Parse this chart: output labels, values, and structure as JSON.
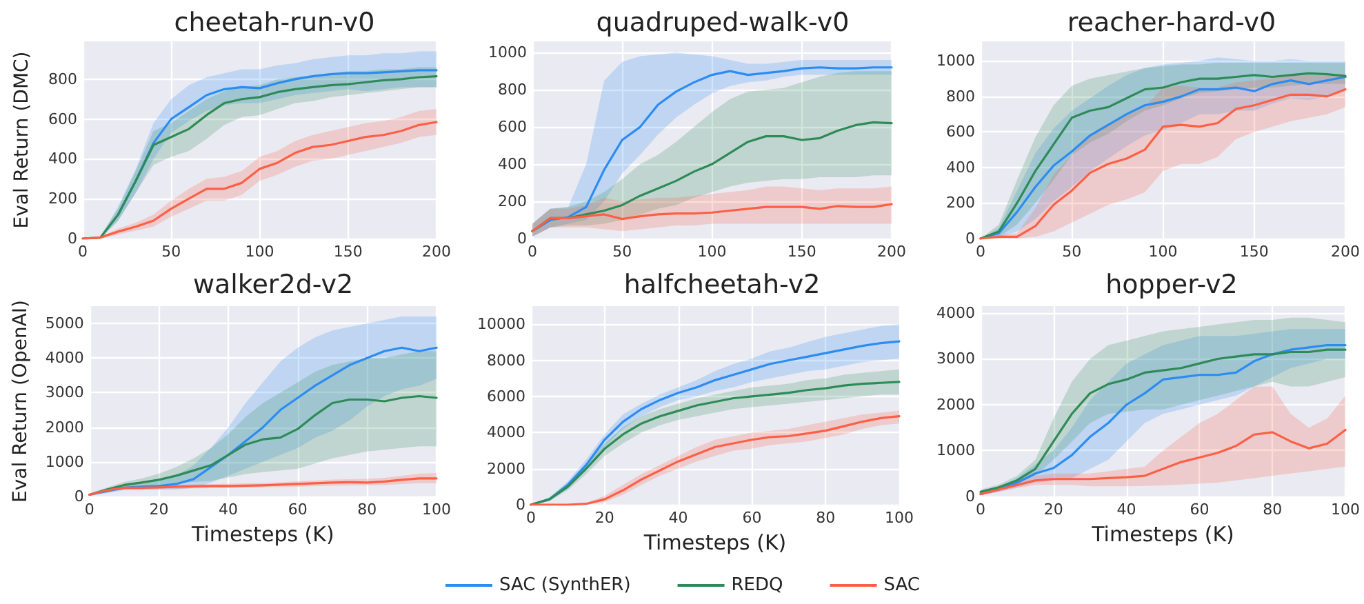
{
  "chart_data": [
    {
      "type": "line",
      "title": "cheetah-run-v0",
      "ylabel": "Eval Return (DMC)",
      "x": [
        0,
        10,
        20,
        30,
        40,
        50,
        60,
        70,
        80,
        90,
        100,
        110,
        120,
        130,
        140,
        150,
        160,
        170,
        180,
        190,
        200
      ],
      "xlim": [
        0,
        200
      ],
      "xticks": [
        0,
        50,
        100,
        150,
        200
      ],
      "ylim": [
        0,
        990
      ],
      "yticks": [
        0,
        200,
        400,
        600,
        800
      ],
      "grid": true,
      "marker": "none",
      "series": [
        {
          "color": "#2b8cf2",
          "values": [
            null,
            null,
            120,
            290,
            480,
            600,
            660,
            720,
            750,
            760,
            755,
            780,
            800,
            815,
            825,
            830,
            830,
            835,
            840,
            845,
            845
          ],
          "lower": [
            0,
            0,
            90,
            230,
            400,
            530,
            590,
            640,
            670,
            680,
            680,
            700,
            720,
            730,
            740,
            750,
            740,
            750,
            760,
            760,
            760
          ],
          "upper": [
            0,
            10,
            160,
            350,
            580,
            700,
            770,
            810,
            830,
            850,
            850,
            870,
            880,
            900,
            910,
            920,
            920,
            930,
            930,
            940,
            940
          ]
        },
        {
          "color": "#2e8b57",
          "values": [
            0,
            5,
            120,
            290,
            470,
            510,
            550,
            620,
            680,
            700,
            710,
            735,
            750,
            760,
            770,
            775,
            785,
            795,
            800,
            810,
            815
          ],
          "lower": [
            0,
            0,
            90,
            230,
            370,
            410,
            440,
            500,
            570,
            610,
            620,
            650,
            680,
            690,
            710,
            720,
            730,
            740,
            750,
            760,
            760
          ],
          "upper": [
            0,
            10,
            150,
            340,
            540,
            580,
            640,
            700,
            740,
            760,
            770,
            800,
            810,
            820,
            830,
            840,
            840,
            850,
            850,
            860,
            860
          ]
        },
        {
          "color": "#fc5f45",
          "values": [
            0,
            5,
            35,
            60,
            90,
            150,
            200,
            250,
            250,
            280,
            350,
            380,
            430,
            460,
            470,
            490,
            510,
            520,
            540,
            570,
            585
          ],
          "lower": [
            0,
            0,
            20,
            40,
            60,
            110,
            150,
            190,
            190,
            220,
            290,
            320,
            360,
            390,
            400,
            420,
            440,
            460,
            480,
            510,
            520
          ],
          "upper": [
            0,
            10,
            50,
            80,
            120,
            190,
            250,
            300,
            310,
            340,
            410,
            440,
            490,
            520,
            540,
            560,
            580,
            590,
            610,
            640,
            650
          ]
        }
      ]
    },
    {
      "type": "line",
      "title": "quadruped-walk-v0",
      "x": [
        0,
        10,
        20,
        30,
        40,
        50,
        60,
        70,
        80,
        90,
        100,
        110,
        120,
        130,
        140,
        150,
        160,
        170,
        180,
        190,
        200
      ],
      "xlim": [
        0,
        200
      ],
      "xticks": [
        0,
        50,
        100,
        150,
        200
      ],
      "ylim": [
        0,
        1060
      ],
      "yticks": [
        0,
        200,
        400,
        600,
        800,
        1000
      ],
      "grid": true,
      "marker": "none",
      "series": [
        {
          "color": "#2b8cf2",
          "values": [
            40,
            100,
            115,
            170,
            370,
            530,
            600,
            720,
            790,
            840,
            880,
            900,
            880,
            890,
            900,
            915,
            920,
            915,
            915,
            920,
            920
          ],
          "lower": [
            10,
            60,
            80,
            100,
            200,
            350,
            450,
            560,
            650,
            720,
            780,
            820,
            840,
            850,
            870,
            880,
            880,
            880,
            880,
            880,
            880
          ],
          "upper": [
            80,
            160,
            170,
            400,
            850,
            950,
            980,
            990,
            1000,
            990,
            980,
            960,
            940,
            940,
            950,
            960,
            960,
            960,
            960,
            960,
            960
          ]
        },
        {
          "color": "#2e8b57",
          "values": [
            40,
            110,
            110,
            130,
            150,
            180,
            230,
            270,
            310,
            360,
            400,
            460,
            520,
            550,
            550,
            530,
            540,
            580,
            610,
            625,
            620
          ],
          "lower": [
            10,
            60,
            70,
            70,
            80,
            100,
            130,
            160,
            180,
            220,
            250,
            280,
            300,
            310,
            320,
            320,
            330,
            330,
            330,
            340,
            340
          ],
          "upper": [
            80,
            160,
            170,
            200,
            250,
            320,
            400,
            450,
            520,
            600,
            680,
            750,
            790,
            800,
            810,
            840,
            870,
            890,
            900,
            900,
            900
          ]
        },
        {
          "color": "#fc5f45",
          "values": [
            40,
            110,
            110,
            120,
            130,
            105,
            120,
            130,
            135,
            135,
            140,
            150,
            160,
            170,
            170,
            170,
            160,
            175,
            170,
            170,
            185
          ],
          "lower": [
            10,
            60,
            60,
            60,
            50,
            40,
            50,
            60,
            70,
            70,
            80,
            80,
            80,
            80,
            80,
            80,
            80,
            80,
            80,
            80,
            80
          ],
          "upper": [
            80,
            160,
            160,
            180,
            220,
            200,
            210,
            220,
            220,
            230,
            240,
            250,
            260,
            280,
            280,
            270,
            260,
            270,
            270,
            270,
            280
          ]
        }
      ]
    },
    {
      "type": "line",
      "title": "reacher-hard-v0",
      "x": [
        0,
        10,
        20,
        30,
        40,
        50,
        60,
        70,
        80,
        90,
        100,
        110,
        120,
        130,
        140,
        150,
        160,
        170,
        180,
        190,
        200
      ],
      "xlim": [
        0,
        200
      ],
      "xticks": [
        0,
        50,
        100,
        150,
        200
      ],
      "ylim": [
        0,
        1110
      ],
      "yticks": [
        0,
        200,
        400,
        600,
        800,
        1000
      ],
      "grid": true,
      "marker": "none",
      "series": [
        {
          "color": "#2b8cf2",
          "values": [
            0,
            30,
            150,
            290,
            410,
            490,
            580,
            640,
            700,
            750,
            770,
            800,
            840,
            840,
            850,
            830,
            870,
            890,
            870,
            890,
            910
          ],
          "lower": [
            0,
            5,
            40,
            110,
            210,
            290,
            380,
            450,
            520,
            580,
            610,
            650,
            700,
            700,
            720,
            720,
            760,
            790,
            780,
            800,
            830
          ],
          "upper": [
            0,
            60,
            270,
            480,
            620,
            720,
            790,
            860,
            920,
            960,
            980,
            990,
            1000,
            1020,
            1010,
            1000,
            1000,
            1010,
            1000,
            1000,
            1000
          ]
        },
        {
          "color": "#2e8b57",
          "values": [
            0,
            40,
            200,
            380,
            530,
            680,
            720,
            740,
            790,
            840,
            850,
            880,
            900,
            900,
            910,
            920,
            910,
            920,
            930,
            925,
            915
          ],
          "lower": [
            0,
            10,
            80,
            200,
            330,
            470,
            540,
            590,
            660,
            720,
            750,
            790,
            820,
            830,
            840,
            850,
            850,
            860,
            870,
            870,
            870
          ],
          "upper": [
            0,
            80,
            330,
            570,
            750,
            860,
            900,
            920,
            940,
            960,
            970,
            980,
            980,
            990,
            990,
            990,
            990,
            990,
            990,
            990,
            990
          ]
        },
        {
          "color": "#fc5f45",
          "values": [
            0,
            10,
            10,
            70,
            190,
            270,
            370,
            420,
            450,
            500,
            630,
            640,
            630,
            650,
            730,
            750,
            780,
            810,
            810,
            800,
            840
          ],
          "lower": [
            0,
            0,
            0,
            10,
            40,
            90,
            140,
            190,
            220,
            260,
            380,
            420,
            420,
            460,
            560,
            600,
            630,
            660,
            680,
            700,
            740
          ],
          "upper": [
            0,
            20,
            30,
            170,
            360,
            470,
            590,
            650,
            700,
            740,
            850,
            860,
            850,
            850,
            880,
            890,
            900,
            920,
            920,
            920,
            930
          ]
        }
      ]
    },
    {
      "type": "line",
      "title": "walker2d-v2",
      "xlabel": "Timesteps (K)",
      "ylabel": "Eval Return (OpenAI)",
      "x": [
        0,
        5,
        10,
        15,
        20,
        25,
        30,
        35,
        40,
        45,
        50,
        55,
        60,
        65,
        70,
        75,
        80,
        85,
        90,
        95,
        100
      ],
      "xlim": [
        0,
        100
      ],
      "xticks": [
        0,
        20,
        40,
        60,
        80,
        100
      ],
      "ylim": [
        0,
        5500
      ],
      "yticks": [
        0,
        1000,
        2000,
        3000,
        4000,
        5000
      ],
      "grid": true,
      "marker": "none",
      "series": [
        {
          "color": "#2b8cf2",
          "values": [
            50,
            150,
            250,
            280,
            300,
            360,
            500,
            850,
            1200,
            1600,
            2000,
            2500,
            2850,
            3200,
            3500,
            3800,
            4000,
            4200,
            4300,
            4200,
            4300
          ],
          "lower": [
            30,
            100,
            180,
            200,
            200,
            200,
            250,
            400,
            600,
            800,
            1000,
            1200,
            1400,
            1700,
            1900,
            2200,
            2600,
            2900,
            3100,
            3200,
            3400
          ],
          "upper": [
            80,
            200,
            320,
            380,
            450,
            600,
            900,
            1400,
            2000,
            2700,
            3300,
            3900,
            4300,
            4600,
            4800,
            4900,
            5000,
            5100,
            5200,
            5200,
            5200
          ]
        },
        {
          "color": "#2e8b57",
          "values": [
            50,
            200,
            330,
            400,
            480,
            600,
            750,
            900,
            1200,
            1500,
            1650,
            1700,
            1950,
            2350,
            2700,
            2800,
            2800,
            2750,
            2850,
            2900,
            2850
          ],
          "lower": [
            30,
            150,
            250,
            280,
            320,
            380,
            420,
            450,
            550,
            650,
            700,
            750,
            800,
            950,
            1100,
            1200,
            1300,
            1350,
            1400,
            1450,
            1450
          ],
          "upper": [
            80,
            260,
            420,
            520,
            660,
            850,
            1100,
            1400,
            1800,
            2300,
            2700,
            3000,
            3300,
            3600,
            3800,
            3900,
            4000,
            4000,
            4100,
            4200,
            4200
          ]
        },
        {
          "color": "#fc5f45",
          "values": [
            50,
            180,
            250,
            250,
            260,
            280,
            290,
            300,
            300,
            310,
            320,
            340,
            360,
            380,
            400,
            410,
            400,
            430,
            480,
            520,
            520
          ],
          "lower": [
            30,
            140,
            200,
            200,
            210,
            220,
            230,
            240,
            240,
            250,
            260,
            270,
            280,
            300,
            310,
            320,
            320,
            330,
            360,
            380,
            380
          ],
          "upper": [
            80,
            220,
            310,
            310,
            320,
            340,
            350,
            360,
            370,
            380,
            390,
            410,
            440,
            460,
            490,
            500,
            510,
            540,
            600,
            660,
            680
          ]
        }
      ]
    },
    {
      "type": "line",
      "title": "halfcheetah-v2",
      "xlabel": "Timesteps (K)",
      "legend": "bottom",
      "x": [
        0,
        5,
        10,
        15,
        20,
        25,
        30,
        35,
        40,
        45,
        50,
        55,
        60,
        65,
        70,
        75,
        80,
        85,
        90,
        95,
        100
      ],
      "xlim": [
        0,
        100
      ],
      "xticks": [
        0,
        20,
        40,
        60,
        80,
        100
      ],
      "ylim": [
        0,
        11000
      ],
      "yticks": [
        0,
        2000,
        4000,
        6000,
        8000,
        10000
      ],
      "grid": true,
      "marker": "none",
      "series": [
        {
          "name": "SAC (SynthER)",
          "color": "#2b8cf2",
          "values": [
            0,
            300,
            1100,
            2200,
            3600,
            4600,
            5300,
            5800,
            6200,
            6500,
            6900,
            7200,
            7500,
            7800,
            8000,
            8200,
            8400,
            8600,
            8800,
            8950,
            9050
          ],
          "lower": [
            0,
            200,
            900,
            1900,
            3200,
            4200,
            4900,
            5400,
            5800,
            6000,
            6300,
            6500,
            6800,
            7000,
            7200,
            7400,
            7500,
            7700,
            7900,
            8000,
            8100
          ],
          "upper": [
            0,
            400,
            1300,
            2500,
            3900,
            5000,
            5600,
            6100,
            6500,
            6900,
            7400,
            7800,
            8100,
            8500,
            8700,
            9000,
            9300,
            9500,
            9700,
            9900,
            10000
          ]
        },
        {
          "name": "REDQ",
          "color": "#2e8b57",
          "values": [
            0,
            300,
            1000,
            2000,
            3100,
            3900,
            4500,
            4900,
            5200,
            5500,
            5700,
            5900,
            6000,
            6100,
            6200,
            6350,
            6450,
            6600,
            6700,
            6750,
            6800
          ],
          "lower": [
            0,
            200,
            800,
            1700,
            2700,
            3400,
            4000,
            4400,
            4700,
            4900,
            5100,
            5300,
            5400,
            5500,
            5600,
            5700,
            5800,
            5900,
            6000,
            6100,
            6100
          ],
          "upper": [
            0,
            400,
            1200,
            2300,
            3400,
            4300,
            4900,
            5300,
            5600,
            5900,
            6100,
            6300,
            6500,
            6600,
            6700,
            6900,
            7000,
            7200,
            7300,
            7400,
            7500
          ]
        },
        {
          "name": "SAC",
          "color": "#fc5f45",
          "values": [
            0,
            0,
            0,
            50,
            300,
            800,
            1400,
            1900,
            2400,
            2800,
            3200,
            3400,
            3600,
            3750,
            3800,
            3950,
            4100,
            4350,
            4600,
            4800,
            4900
          ],
          "lower": [
            0,
            0,
            0,
            0,
            150,
            550,
            1100,
            1600,
            2000,
            2400,
            2700,
            3000,
            3100,
            3300,
            3400,
            3500,
            3700,
            3900,
            4200,
            4400,
            4500
          ],
          "upper": [
            0,
            0,
            0,
            100,
            500,
            1100,
            1700,
            2200,
            2700,
            3200,
            3600,
            3800,
            4000,
            4100,
            4200,
            4400,
            4600,
            4800,
            5000,
            5100,
            5200
          ]
        }
      ]
    },
    {
      "type": "line",
      "title": "hopper-v2",
      "xlabel": "Timesteps (K)",
      "x": [
        0,
        5,
        10,
        15,
        20,
        25,
        30,
        35,
        40,
        45,
        50,
        55,
        60,
        65,
        70,
        75,
        80,
        85,
        90,
        95,
        100
      ],
      "xlim": [
        0,
        100
      ],
      "xticks": [
        0,
        20,
        40,
        60,
        80,
        100
      ],
      "ylim": [
        0,
        4150
      ],
      "yticks": [
        0,
        1000,
        2000,
        3000,
        4000
      ],
      "grid": true,
      "marker": "none",
      "series": [
        {
          "color": "#2b8cf2",
          "values": [
            50,
            150,
            300,
            500,
            620,
            900,
            1300,
            1600,
            2000,
            2250,
            2550,
            2600,
            2650,
            2650,
            2700,
            2950,
            3100,
            3200,
            3250,
            3300,
            3300
          ],
          "lower": [
            30,
            100,
            200,
            300,
            350,
            400,
            600,
            800,
            1200,
            1600,
            1800,
            1900,
            2000,
            2100,
            2200,
            2400,
            2600,
            2800,
            2900,
            3000,
            3000
          ],
          "upper": [
            80,
            200,
            400,
            700,
            1000,
            1500,
            2100,
            2500,
            2900,
            3100,
            3300,
            3400,
            3500,
            3500,
            3500,
            3550,
            3600,
            3650,
            3650,
            3650,
            3650
          ]
        },
        {
          "color": "#2e8b57",
          "values": [
            100,
            200,
            350,
            600,
            1200,
            1800,
            2250,
            2450,
            2550,
            2700,
            2750,
            2800,
            2900,
            3000,
            3050,
            3100,
            3100,
            3150,
            3150,
            3200,
            3200
          ],
          "lower": [
            60,
            150,
            280,
            450,
            800,
            1200,
            1600,
            1800,
            1850,
            1900,
            1900,
            2000,
            2100,
            2200,
            2300,
            2400,
            2500,
            2400,
            2400,
            2500,
            2600
          ],
          "upper": [
            150,
            260,
            450,
            800,
            1700,
            2500,
            3000,
            3300,
            3400,
            3500,
            3600,
            3650,
            3700,
            3750,
            3800,
            3850,
            3850,
            3900,
            3900,
            3850,
            3800
          ]
        },
        {
          "color": "#fc5f45",
          "values": [
            50,
            150,
            250,
            350,
            380,
            380,
            380,
            400,
            420,
            450,
            600,
            750,
            850,
            950,
            1100,
            1350,
            1400,
            1200,
            1050,
            1150,
            1450
          ],
          "lower": [
            30,
            100,
            180,
            250,
            250,
            250,
            220,
            220,
            220,
            230,
            240,
            260,
            280,
            300,
            350,
            400,
            450,
            500,
            550,
            600,
            650
          ],
          "upper": [
            80,
            200,
            330,
            450,
            500,
            500,
            500,
            550,
            600,
            650,
            1000,
            1300,
            1600,
            1800,
            2100,
            2400,
            2400,
            1800,
            1500,
            1700,
            2200
          ]
        }
      ]
    }
  ]
}
